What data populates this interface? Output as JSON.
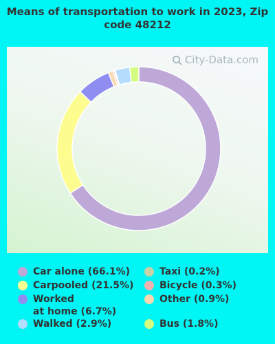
{
  "chart_data": {
    "type": "pie",
    "title": "Means of transportation to work in 2023, Zip code 48212",
    "slices": [
      {
        "label": "Car alone",
        "value": 66.1,
        "display": "Car alone (66.1%)",
        "color": "#bea8d8"
      },
      {
        "label": "Carpooled",
        "value": 21.5,
        "display": "Carpooled (21.5%)",
        "color": "#fdfc8f"
      },
      {
        "label": "Worked at home",
        "value": 6.7,
        "display": "Worked\nat home (6.7%)",
        "color": "#8f8ef0"
      },
      {
        "label": "Other",
        "value": 0.9,
        "display": "Other (0.9%)",
        "color": "#fcd8b0"
      },
      {
        "label": "Bicycle",
        "value": 0.3,
        "display": "Bicycle (0.3%)",
        "color": "#f4b2b0"
      },
      {
        "label": "Taxi",
        "value": 0.2,
        "display": "Taxi (0.2%)",
        "color": "#c8d4a8"
      },
      {
        "label": "Walked",
        "value": 2.9,
        "display": "Walked (2.9%)",
        "color": "#b4dcfc"
      },
      {
        "label": "Bus",
        "value": 1.8,
        "display": "Bus (1.8%)",
        "color": "#d4fc80"
      }
    ],
    "legend_order": [
      "Car alone",
      "Carpooled",
      "Worked at home",
      "Walked",
      "Taxi",
      "Bicycle",
      "Other",
      "Bus"
    ],
    "legend_placement": "bottom"
  },
  "watermark": "City-Data.com"
}
